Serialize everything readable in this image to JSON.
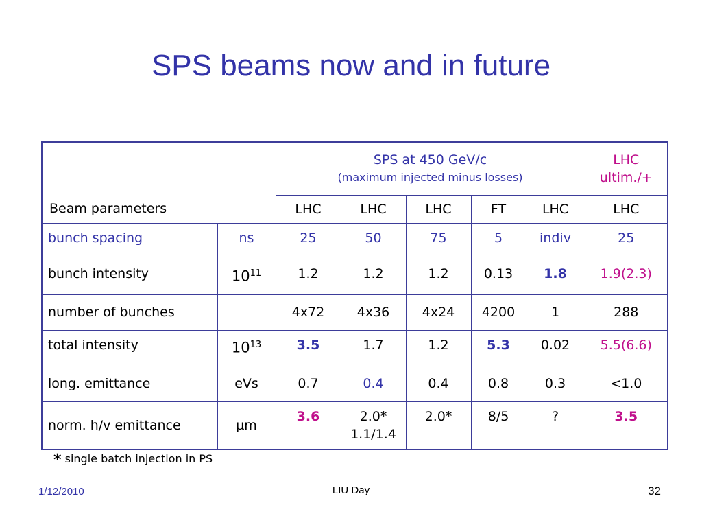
{
  "title": "SPS beams now and in future",
  "header": {
    "beam_parameters": "Beam parameters",
    "sps_group": "SPS at 450 GeV/c",
    "sps_note": "(maximum injected minus losses)",
    "lhc_ultim_line1": "LHC",
    "lhc_ultim_line2": "ultim./+",
    "sub_columns": [
      "LHC",
      "LHC",
      "LHC",
      "FT",
      "LHC",
      "LHC"
    ]
  },
  "rows": [
    {
      "label": "bunch spacing",
      "unit": "ns",
      "values": [
        "25",
        "50",
        "75",
        "5",
        "indiv",
        "25"
      ]
    },
    {
      "label": "bunch intensity",
      "unit_base": "10",
      "unit_exp": "11",
      "values": [
        "1.2",
        "1.2",
        "1.2",
        "0.13",
        "1.8",
        "1.9(2.3)"
      ]
    },
    {
      "label": "number of bunches",
      "unit": "",
      "values": [
        "4x72",
        "4x36",
        "4x24",
        "4200",
        "1",
        "288"
      ]
    },
    {
      "label": "total intensity",
      "unit_base": "10",
      "unit_exp": "13",
      "values": [
        "3.5",
        "1.7",
        "1.2",
        "5.3",
        "0.02",
        "5.5(6.6)"
      ]
    },
    {
      "label": "long. emittance",
      "unit": "eVs",
      "values": [
        "0.7",
        "0.4",
        "0.4",
        "0.8",
        "0.3",
        "<1.0"
      ]
    },
    {
      "label": "norm. h/v emittance",
      "unit": "µm",
      "values": [
        "3.6",
        "2.0*",
        "2.0*",
        "8/5",
        "?",
        "3.5"
      ],
      "extra_line": "1.1/1.4"
    }
  ],
  "footnote": {
    "star": "*",
    "text": "single batch injection in PS"
  },
  "footer": {
    "date": "1/12/2010",
    "center": "LIU Day",
    "page": "32"
  }
}
